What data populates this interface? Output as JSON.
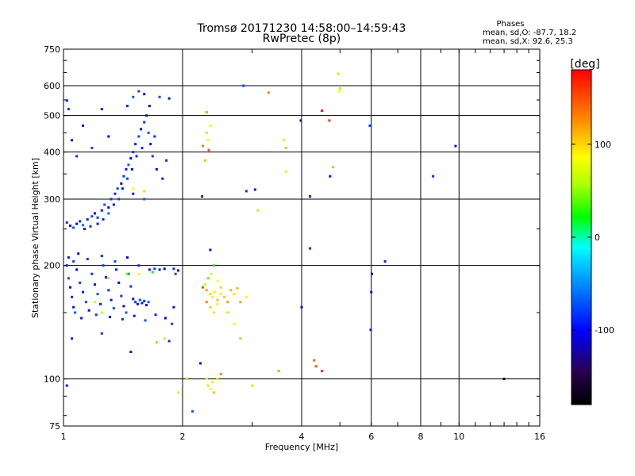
{
  "chart_data": {
    "type": "scatter",
    "title": "Tromsø 20171230 14:58:00–14:59:43",
    "subtitle": "RwPretec (8p)",
    "xlabel": "Frequency [MHz]",
    "ylabel": "Stationary phase Virtual Height [km]",
    "x_scale": "log",
    "y_scale": "log",
    "xlim": [
      1,
      16
    ],
    "ylim": [
      75,
      750
    ],
    "x_ticks": [
      1,
      2,
      4,
      6,
      8,
      10,
      16
    ],
    "y_ticks": [
      75,
      100,
      200,
      300,
      400,
      500,
      600,
      750
    ],
    "x_tick_labels": [
      "1",
      "2",
      "4",
      "6",
      "8",
      "10",
      "16"
    ],
    "y_tick_labels": [
      "75",
      "100",
      "200",
      "300",
      "400",
      "500",
      "600",
      "750"
    ],
    "grid": true,
    "stats": {
      "heading": "Phases",
      "o_line": "mean, sd,O: -87.7, 18.2",
      "x_line": "mean, sd,X:  92.6, 25.3"
    },
    "colorbar": {
      "label": "[deg]",
      "range": [
        -180,
        180
      ],
      "ticks": [
        100,
        0,
        -100
      ],
      "tick_labels": [
        "100",
        "0",
        "-100"
      ],
      "colors": [
        "#000000",
        "#2a0050",
        "#0000ff",
        "#00a0ff",
        "#00ffff",
        "#00ff00",
        "#b0ff00",
        "#ffff00",
        "#ff8000",
        "#ff0000"
      ]
    },
    "series": [
      {
        "name": "O",
        "points": [
          [
            1.02,
            548,
            -90
          ],
          [
            1.03,
            520,
            -80
          ],
          [
            1.05,
            430,
            -100
          ],
          [
            1.08,
            390,
            -85
          ],
          [
            1.12,
            470,
            -110
          ],
          [
            1.18,
            410,
            -75
          ],
          [
            1.25,
            520,
            -95
          ],
          [
            1.3,
            440,
            -105
          ],
          [
            1.02,
            260,
            -80
          ],
          [
            1.04,
            255,
            -95
          ],
          [
            1.06,
            252,
            -70
          ],
          [
            1.08,
            258,
            -100
          ],
          [
            1.1,
            262,
            -85
          ],
          [
            1.12,
            256,
            -60
          ],
          [
            1.15,
            265,
            -90
          ],
          [
            1.18,
            270,
            -75
          ],
          [
            1.2,
            275,
            -105
          ],
          [
            1.22,
            268,
            -80
          ],
          [
            1.25,
            280,
            -95
          ],
          [
            1.27,
            290,
            -70
          ],
          [
            1.3,
            285,
            -100
          ],
          [
            1.32,
            300,
            -85
          ],
          [
            1.35,
            310,
            -90
          ],
          [
            1.37,
            320,
            -75
          ],
          [
            1.4,
            330,
            -110
          ],
          [
            1.42,
            345,
            -80
          ],
          [
            1.44,
            360,
            -95
          ],
          [
            1.46,
            370,
            -65
          ],
          [
            1.48,
            385,
            -100
          ],
          [
            1.5,
            400,
            -85
          ],
          [
            1.52,
            420,
            -90
          ],
          [
            1.55,
            440,
            -75
          ],
          [
            1.57,
            460,
            -105
          ],
          [
            1.6,
            480,
            -80
          ],
          [
            1.62,
            500,
            -95
          ],
          [
            1.64,
            450,
            -70
          ],
          [
            1.66,
            420,
            -100
          ],
          [
            1.58,
            410,
            -85
          ],
          [
            1.53,
            390,
            -90
          ],
          [
            1.49,
            360,
            -110
          ],
          [
            1.45,
            340,
            -75
          ],
          [
            1.41,
            320,
            -95
          ],
          [
            1.38,
            300,
            -80
          ],
          [
            1.34,
            290,
            -100
          ],
          [
            1.3,
            275,
            -65
          ],
          [
            1.26,
            265,
            -90
          ],
          [
            1.22,
            258,
            -105
          ],
          [
            1.17,
            254,
            -85
          ],
          [
            1.13,
            250,
            -95
          ],
          [
            1.5,
            560,
            -70
          ],
          [
            1.55,
            580,
            -80
          ],
          [
            1.6,
            570,
            -100
          ],
          [
            1.45,
            530,
            -90
          ],
          [
            1.65,
            530,
            -110
          ],
          [
            1.7,
            440,
            -85
          ],
          [
            1.75,
            560,
            -75
          ],
          [
            1.85,
            555,
            -95
          ],
          [
            1.68,
            390,
            -80
          ],
          [
            1.72,
            360,
            -100
          ],
          [
            1.78,
            340,
            -90
          ],
          [
            1.82,
            380,
            -85
          ],
          [
            1.6,
            300,
            -70
          ],
          [
            1.5,
            310,
            -95
          ],
          [
            1.02,
            200,
            -90
          ],
          [
            1.03,
            185,
            -75
          ],
          [
            1.04,
            175,
            -100
          ],
          [
            1.05,
            165,
            -85
          ],
          [
            1.06,
            155,
            -95
          ],
          [
            1.07,
            150,
            -70
          ],
          [
            1.08,
            195,
            -105
          ],
          [
            1.1,
            180,
            -80
          ],
          [
            1.12,
            170,
            -90
          ],
          [
            1.14,
            160,
            -75
          ],
          [
            1.16,
            152,
            -100
          ],
          [
            1.18,
            190,
            -85
          ],
          [
            1.2,
            178,
            -95
          ],
          [
            1.22,
            168,
            -70
          ],
          [
            1.24,
            158,
            -90
          ],
          [
            1.26,
            200,
            -80
          ],
          [
            1.28,
            186,
            -100
          ],
          [
            1.3,
            172,
            -85
          ],
          [
            1.32,
            162,
            -95
          ],
          [
            1.34,
            154,
            -75
          ],
          [
            1.36,
            195,
            -90
          ],
          [
            1.38,
            180,
            -105
          ],
          [
            1.4,
            166,
            -80
          ],
          [
            1.42,
            156,
            -95
          ],
          [
            1.44,
            150,
            -70
          ],
          [
            1.46,
            190,
            -90
          ],
          [
            1.48,
            176,
            -85
          ],
          [
            1.5,
            163,
            -100
          ],
          [
            1.52,
            160,
            -80
          ],
          [
            1.54,
            158,
            -95
          ],
          [
            1.56,
            162,
            -75
          ],
          [
            1.58,
            159,
            -90
          ],
          [
            1.6,
            161,
            -85
          ],
          [
            1.62,
            157,
            -100
          ],
          [
            1.64,
            160,
            -70
          ],
          [
            1.03,
            210,
            -95
          ],
          [
            1.06,
            205,
            -80
          ],
          [
            1.09,
            215,
            -100
          ],
          [
            1.15,
            208,
            -85
          ],
          [
            1.25,
            212,
            -90
          ],
          [
            1.35,
            205,
            -75
          ],
          [
            1.45,
            210,
            -100
          ],
          [
            1.55,
            200,
            -85
          ],
          [
            1.65,
            195,
            -95
          ],
          [
            1.7,
            196,
            -80
          ],
          [
            1.75,
            195,
            -90
          ],
          [
            1.8,
            196,
            -100
          ],
          [
            1.9,
            196,
            -85
          ],
          [
            1.95,
            194,
            -95
          ],
          [
            1.92,
            190,
            -75
          ],
          [
            1.11,
            145,
            -90
          ],
          [
            1.21,
            148,
            -80
          ],
          [
            1.31,
            146,
            -100
          ],
          [
            1.41,
            144,
            -85
          ],
          [
            1.51,
            147,
            -95
          ],
          [
            1.61,
            143,
            -70
          ],
          [
            1.71,
            148,
            -90
          ],
          [
            1.81,
            145,
            -105
          ],
          [
            1.88,
            140,
            -80
          ],
          [
            1.9,
            155,
            -95
          ],
          [
            1.05,
            128,
            -90
          ],
          [
            1.25,
            132,
            -80
          ],
          [
            1.48,
            118,
            -100
          ],
          [
            1.85,
            126,
            -85
          ],
          [
            1.02,
            96,
            -95
          ],
          [
            2.24,
            305,
            -90
          ],
          [
            2.22,
            110,
            -100
          ],
          [
            2.12,
            82,
            -70
          ],
          [
            2.35,
            220,
            -95
          ],
          [
            2.9,
            315,
            -85
          ],
          [
            2.85,
            600,
            -75
          ],
          [
            3.05,
            318,
            -100
          ],
          [
            4.2,
            305,
            -90
          ],
          [
            4.2,
            222,
            -85
          ],
          [
            4.0,
            155,
            -110
          ],
          [
            3.98,
            485,
            -130
          ],
          [
            4.72,
            345,
            -95
          ],
          [
            5.95,
            470,
            -80
          ],
          [
            6.02,
            190,
            -120
          ],
          [
            6.0,
            170,
            -100
          ],
          [
            5.98,
            135,
            -95
          ],
          [
            6.5,
            205,
            -90
          ],
          [
            8.6,
            345,
            -85
          ],
          [
            9.8,
            415,
            -95
          ],
          [
            13.0,
            100,
            -160
          ]
        ]
      },
      {
        "name": "X",
        "points": [
          [
            2.3,
            510,
            120
          ],
          [
            2.35,
            470,
            90
          ],
          [
            2.3,
            450,
            100
          ],
          [
            2.32,
            430,
            80
          ],
          [
            2.28,
            380,
            110
          ],
          [
            2.33,
            405,
            150
          ],
          [
            2.25,
            415,
            130
          ],
          [
            2.25,
            175,
            150
          ],
          [
            2.3,
            172,
            120
          ],
          [
            2.35,
            168,
            100
          ],
          [
            2.38,
            165,
            90
          ],
          [
            2.4,
            170,
            80
          ],
          [
            2.45,
            162,
            110
          ],
          [
            2.5,
            168,
            95
          ],
          [
            2.55,
            165,
            105
          ],
          [
            2.6,
            160,
            120
          ],
          [
            2.28,
            178,
            60
          ],
          [
            2.32,
            185,
            40
          ],
          [
            2.36,
            190,
            70
          ],
          [
            2.4,
            200,
            30
          ],
          [
            2.45,
            182,
            85
          ],
          [
            2.5,
            175,
            100
          ],
          [
            2.65,
            172,
            115
          ],
          [
            2.7,
            168,
            95
          ],
          [
            2.75,
            174,
            110
          ],
          [
            2.8,
            160,
            120
          ],
          [
            2.3,
            160,
            130
          ],
          [
            2.35,
            155,
            105
          ],
          [
            2.4,
            150,
            95
          ],
          [
            2.45,
            158,
            80
          ],
          [
            2.6,
            150,
            100
          ],
          [
            2.7,
            140,
            85
          ],
          [
            2.8,
            128,
            110
          ],
          [
            2.3,
            100,
            90
          ],
          [
            2.32,
            96,
            100
          ],
          [
            2.35,
            94,
            85
          ],
          [
            2.38,
            98,
            95
          ],
          [
            2.4,
            92,
            110
          ],
          [
            2.45,
            100,
            80
          ],
          [
            2.5,
            103,
            130
          ],
          [
            3.0,
            96,
            100
          ],
          [
            2.9,
            165,
            90
          ],
          [
            3.1,
            280,
            100
          ],
          [
            3.6,
            430,
            95
          ],
          [
            3.65,
            410,
            110
          ],
          [
            3.65,
            355,
            95
          ],
          [
            3.5,
            105,
            120
          ],
          [
            4.3,
            112,
            140
          ],
          [
            4.35,
            108,
            150
          ],
          [
            4.5,
            105,
            160
          ],
          [
            4.5,
            515,
            170
          ],
          [
            4.7,
            485,
            160
          ],
          [
            4.8,
            365,
            110
          ],
          [
            4.95,
            645,
            100
          ],
          [
            4.98,
            580,
            90
          ],
          [
            5.0,
            590,
            60
          ],
          [
            3.3,
            575,
            130
          ],
          [
            2.05,
            100,
            100
          ],
          [
            1.95,
            92,
            95
          ],
          [
            1.5,
            320,
            80
          ],
          [
            1.6,
            315,
            100
          ],
          [
            1.3,
            185,
            60
          ],
          [
            1.45,
            190,
            40
          ],
          [
            1.55,
            190,
            90
          ],
          [
            1.68,
            192,
            20
          ],
          [
            1.72,
            125,
            110
          ],
          [
            1.8,
            128,
            100
          ],
          [
            1.2,
            160,
            70
          ],
          [
            1.25,
            150,
            60
          ]
        ]
      }
    ]
  }
}
